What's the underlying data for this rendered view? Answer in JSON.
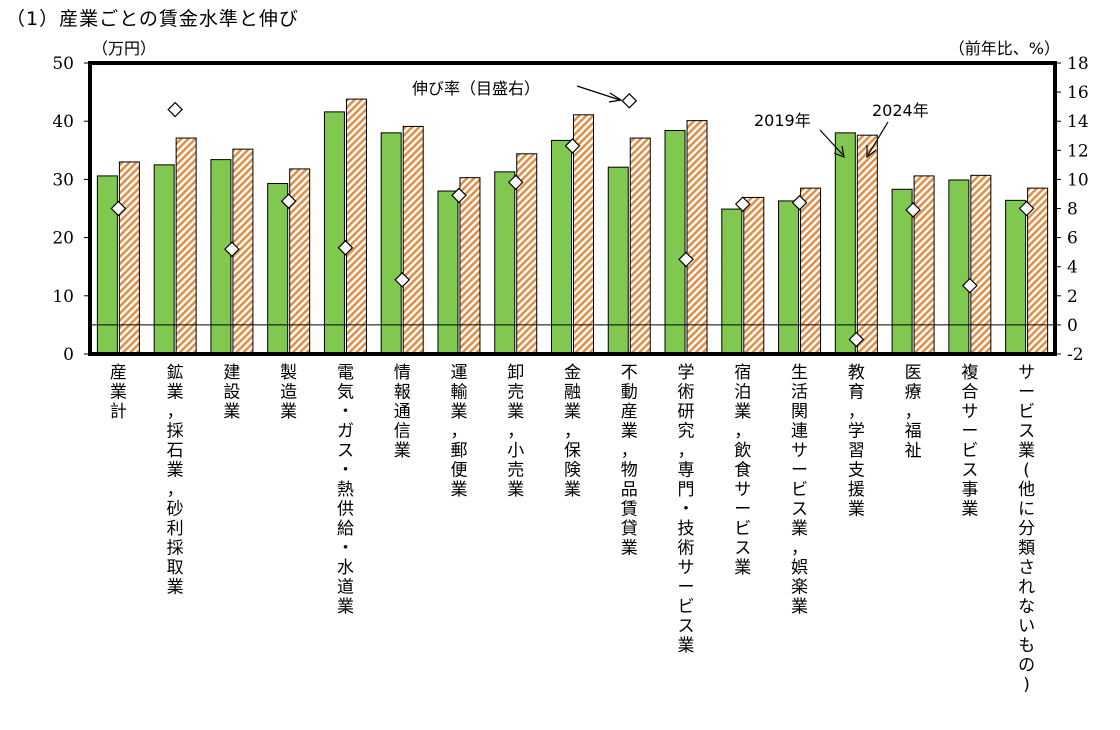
{
  "page": {
    "title": "（1）産業ごとの賃金水準と伸び"
  },
  "chart_data": {
    "type": "bar",
    "categories": [
      "産業計",
      "鉱業，採石業，砂利採取業",
      "建設業",
      "製造業",
      "電気・ガス・熱供給・水道業",
      "情報通信業",
      "運輸業，郵便業",
      "卸売業，小売業",
      "金融業，保険業",
      "不動産業，物品賃貸業",
      "学術研究，専門・技術サービス業",
      "宿泊業，飲食サービス業",
      "生活関連サービス業，娯楽業",
      "教育，学習支援業",
      "医療，福祉",
      "複合サービス事業",
      "サービス業(他に分類されないもの)"
    ],
    "series": [
      {
        "name": "2019年",
        "axis": "left",
        "color": "#80c850",
        "values": [
          30.6,
          32.5,
          33.4,
          29.3,
          41.6,
          38.0,
          28.0,
          31.3,
          36.7,
          32.1,
          38.4,
          24.9,
          26.3,
          38.0,
          28.3,
          29.9,
          26.4
        ]
      },
      {
        "name": "2024年",
        "axis": "left",
        "color": "#e09048",
        "pattern": "diagonal-hatch",
        "values": [
          33.0,
          37.1,
          35.2,
          31.8,
          43.8,
          39.1,
          30.3,
          34.4,
          41.1,
          37.1,
          40.1,
          26.9,
          28.5,
          37.6,
          30.6,
          30.7,
          28.5
        ]
      },
      {
        "name": "伸び率（目盛右）",
        "axis": "right",
        "marker": "diamond",
        "values": [
          8.0,
          14.8,
          5.2,
          8.5,
          5.3,
          3.1,
          8.9,
          9.8,
          12.3,
          15.4,
          4.5,
          8.3,
          8.4,
          -1.0,
          7.9,
          2.7,
          8.0
        ]
      }
    ],
    "ylabel_left_unit": "（万円）",
    "ylabel_right_unit": "（前年比、%）",
    "ylim_left": [
      0,
      50
    ],
    "yticks_left": [
      "0",
      "10",
      "20",
      "30",
      "40",
      "50"
    ],
    "ylim_right": [
      -2,
      18
    ],
    "yticks_right": [
      "-2",
      "0",
      "2",
      "4",
      "6",
      "8",
      "10",
      "12",
      "14",
      "16",
      "18"
    ],
    "reference_line_right": 0,
    "grid": false,
    "annotations": {
      "growth_label": "伸び率（目盛右）",
      "year_2019": "2019年",
      "year_2024": "2024年"
    },
    "colors": {
      "bar_2019": "#80c850",
      "bar_2024": "#e09048",
      "frame": "#000000"
    }
  }
}
